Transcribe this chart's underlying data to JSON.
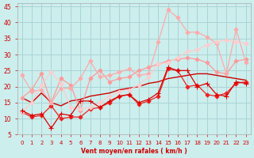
{
  "background_color": "#cceeed",
  "grid_color": "#aad4d4",
  "x_label": "Vent moyen/en rafales ( km/h )",
  "xlim": [
    -0.5,
    23.5
  ],
  "ylim": [
    5,
    46
  ],
  "yticks": [
    5,
    10,
    15,
    20,
    25,
    30,
    35,
    40,
    45
  ],
  "xticks": [
    0,
    1,
    2,
    3,
    4,
    5,
    6,
    7,
    8,
    9,
    10,
    11,
    12,
    13,
    14,
    15,
    16,
    17,
    18,
    19,
    20,
    21,
    22,
    23
  ],
  "lines": [
    {
      "x": [
        0,
        1,
        2,
        3,
        4,
        5,
        6,
        7,
        8,
        9,
        10,
        11,
        12,
        13,
        14,
        15,
        16,
        17,
        18,
        19,
        20,
        21,
        22,
        23
      ],
      "y": [
        12.5,
        11.0,
        11.5,
        7.0,
        11.5,
        11.0,
        15.5,
        15.5,
        13.5,
        15.5,
        17.0,
        17.5,
        15.0,
        16.0,
        18.0,
        26.0,
        25.0,
        25.0,
        20.0,
        21.0,
        17.5,
        17.0,
        21.5,
        21.0
      ],
      "color": "#dd0000",
      "marker": "+",
      "linewidth": 0.9,
      "markersize": 4,
      "zorder": 4
    },
    {
      "x": [
        0,
        1,
        2,
        3,
        4,
        5,
        6,
        7,
        8,
        9,
        10,
        11,
        12,
        13,
        14,
        15,
        16,
        17,
        18,
        19,
        20,
        21,
        22,
        23
      ],
      "y": [
        12.0,
        10.5,
        11.0,
        14.0,
        10.0,
        10.5,
        10.5,
        13.0,
        13.5,
        15.0,
        17.0,
        17.5,
        14.5,
        15.5,
        17.0,
        25.5,
        25.0,
        20.0,
        20.5,
        17.5,
        17.0,
        18.0,
        21.0,
        21.5
      ],
      "color": "#ee2222",
      "marker": "D",
      "linewidth": 0.9,
      "markersize": 2.5,
      "zorder": 3
    },
    {
      "x": [
        0,
        1,
        2,
        3,
        4,
        5,
        6,
        7,
        8,
        9,
        10,
        11,
        12,
        13,
        14,
        15,
        16,
        17,
        18,
        19,
        20,
        21,
        22,
        23
      ],
      "y": [
        16.5,
        15.0,
        18.0,
        15.0,
        14.0,
        15.5,
        16.0,
        17.0,
        17.5,
        18.0,
        19.0,
        19.5,
        20.0,
        21.0,
        21.5,
        22.5,
        23.0,
        23.5,
        24.0,
        24.0,
        23.5,
        23.0,
        22.5,
        22.0
      ],
      "color": "#cc0000",
      "marker": null,
      "linewidth": 1.0,
      "markersize": 0,
      "zorder": 2
    },
    {
      "x": [
        0,
        1,
        2,
        3,
        4,
        5,
        6,
        7,
        8,
        9,
        10,
        11,
        12,
        13,
        14,
        15,
        16,
        17,
        18,
        19,
        20,
        21,
        22,
        23
      ],
      "y": [
        16.5,
        19.0,
        24.0,
        15.0,
        22.5,
        20.5,
        12.5,
        22.5,
        25.0,
        21.5,
        22.5,
        23.0,
        25.0,
        26.0,
        27.0,
        28.0,
        28.5,
        29.0,
        28.5,
        27.5,
        24.5,
        24.0,
        28.0,
        28.5
      ],
      "color": "#ff9999",
      "marker": "D",
      "linewidth": 0.9,
      "markersize": 2.5,
      "zorder": 3
    },
    {
      "x": [
        0,
        1,
        2,
        3,
        4,
        5,
        6,
        7,
        8,
        9,
        10,
        11,
        12,
        13,
        14,
        15,
        16,
        17,
        18,
        19,
        20,
        21,
        22,
        23
      ],
      "y": [
        23.5,
        18.5,
        19.0,
        15.0,
        19.5,
        19.5,
        22.5,
        28.0,
        23.0,
        23.5,
        24.5,
        25.5,
        23.5,
        24.0,
        34.0,
        44.0,
        41.5,
        37.0,
        37.0,
        35.5,
        33.5,
        24.0,
        38.0,
        27.5
      ],
      "color": "#ffaaaa",
      "marker": "D",
      "linewidth": 0.9,
      "markersize": 2.5,
      "zorder": 3
    },
    {
      "x": [
        0,
        1,
        2,
        3,
        4,
        5,
        6,
        7,
        8,
        9,
        10,
        11,
        12,
        13,
        14,
        15,
        16,
        17,
        18,
        19,
        20,
        21,
        22,
        23
      ],
      "y": [
        12.0,
        15.0,
        20.5,
        24.5,
        21.0,
        13.5,
        13.0,
        13.5,
        15.0,
        17.0,
        18.5,
        19.0,
        20.5,
        23.0,
        27.0,
        27.5,
        29.0,
        31.0,
        31.5,
        33.0,
        34.0,
        34.5,
        34.0,
        33.5
      ],
      "color": "#ffcccc",
      "marker": "D",
      "linewidth": 0.9,
      "markersize": 2.5,
      "zorder": 3
    }
  ]
}
